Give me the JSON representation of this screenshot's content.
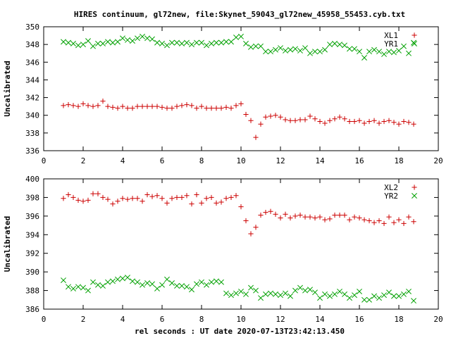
{
  "chart_data": [
    {
      "type": "scatter",
      "title": "HIRES continuum, gl72new, file:Skynet_59043_gl72new_45958_55453.cyb.txt",
      "xlabel": "",
      "ylabel": "Uncalibrated",
      "xlim": [
        0,
        20
      ],
      "ylim": [
        336,
        350
      ],
      "xticks": [
        0,
        2,
        4,
        6,
        8,
        10,
        12,
        14,
        16,
        18,
        20
      ],
      "yticks": [
        336,
        338,
        340,
        342,
        344,
        346,
        348,
        350
      ],
      "grid": false,
      "legend_position": "top-right",
      "series": [
        {
          "name": "XL1",
          "marker": "plus",
          "color": "#cc0000",
          "x": [
            1.0,
            1.25,
            1.5,
            1.75,
            2.0,
            2.25,
            2.5,
            2.75,
            3.0,
            3.25,
            3.5,
            3.75,
            4.0,
            4.25,
            4.5,
            4.75,
            5.0,
            5.25,
            5.5,
            5.75,
            6.0,
            6.25,
            6.5,
            6.75,
            7.0,
            7.25,
            7.5,
            7.75,
            8.0,
            8.25,
            8.5,
            8.75,
            9.0,
            9.25,
            9.5,
            9.75,
            10.0,
            10.25,
            10.5,
            10.75,
            11.0,
            11.25,
            11.5,
            11.75,
            12.0,
            12.25,
            12.5,
            12.75,
            13.0,
            13.25,
            13.5,
            13.75,
            14.0,
            14.25,
            14.5,
            14.75,
            15.0,
            15.25,
            15.5,
            15.75,
            16.0,
            16.25,
            16.5,
            16.75,
            17.0,
            17.25,
            17.5,
            17.75,
            18.0,
            18.25,
            18.5,
            18.75
          ],
          "y": [
            341.1,
            341.2,
            341.1,
            341.0,
            341.3,
            341.1,
            341.0,
            341.1,
            341.6,
            341.0,
            340.9,
            340.8,
            341.0,
            340.8,
            340.8,
            341.0,
            341.0,
            341.0,
            341.0,
            341.0,
            340.9,
            340.8,
            340.8,
            341.0,
            341.1,
            341.2,
            341.1,
            340.8,
            341.0,
            340.8,
            340.8,
            340.8,
            340.8,
            340.9,
            340.8,
            341.1,
            341.3,
            340.1,
            339.4,
            337.5,
            339.0,
            339.8,
            339.9,
            340.0,
            339.8,
            339.5,
            339.4,
            339.4,
            339.5,
            339.5,
            339.9,
            339.6,
            339.3,
            339.1,
            339.4,
            339.6,
            339.8,
            339.6,
            339.3,
            339.3,
            339.4,
            339.1,
            339.3,
            339.4,
            339.1,
            339.3,
            339.4,
            339.2,
            339.0,
            339.3,
            339.2,
            339.0
          ]
        },
        {
          "name": "YR1",
          "marker": "x",
          "color": "#00a000",
          "x": [
            1.0,
            1.25,
            1.5,
            1.75,
            2.0,
            2.25,
            2.5,
            2.75,
            3.0,
            3.25,
            3.5,
            3.75,
            4.0,
            4.25,
            4.5,
            4.75,
            5.0,
            5.25,
            5.5,
            5.75,
            6.0,
            6.25,
            6.5,
            6.75,
            7.0,
            7.25,
            7.5,
            7.75,
            8.0,
            8.25,
            8.5,
            8.75,
            9.0,
            9.25,
            9.5,
            9.75,
            10.0,
            10.25,
            10.5,
            10.75,
            11.0,
            11.25,
            11.5,
            11.75,
            12.0,
            12.25,
            12.5,
            12.75,
            13.0,
            13.25,
            13.5,
            13.75,
            14.0,
            14.25,
            14.5,
            14.75,
            15.0,
            15.25,
            15.5,
            15.75,
            16.0,
            16.25,
            16.5,
            16.75,
            17.0,
            17.25,
            17.5,
            17.75,
            18.0,
            18.25,
            18.5,
            18.75
          ],
          "y": [
            348.3,
            348.2,
            348.1,
            347.9,
            348.0,
            348.4,
            347.8,
            348.1,
            348.1,
            348.3,
            348.2,
            348.3,
            348.7,
            348.5,
            348.4,
            348.7,
            348.9,
            348.7,
            348.6,
            348.2,
            348.1,
            347.9,
            348.2,
            348.2,
            348.1,
            348.2,
            348.0,
            348.2,
            348.2,
            347.9,
            348.1,
            348.2,
            348.2,
            348.3,
            348.3,
            348.8,
            348.9,
            348.1,
            347.7,
            347.8,
            347.8,
            347.2,
            347.2,
            347.4,
            347.6,
            347.3,
            347.4,
            347.5,
            347.3,
            347.6,
            347.0,
            347.2,
            347.2,
            347.4,
            348.0,
            348.1,
            348.0,
            347.9,
            347.5,
            347.5,
            347.2,
            346.5,
            347.2,
            347.4,
            347.2,
            346.9,
            347.2,
            347.1,
            347.3,
            347.8,
            347.0,
            348.2
          ]
        }
      ]
    },
    {
      "type": "scatter",
      "title": "",
      "xlabel": "rel seconds : UT date 2020-07-13T23:42:13.450",
      "ylabel": "Uncalibrated",
      "xlim": [
        0,
        20
      ],
      "ylim": [
        386,
        400
      ],
      "xticks": [
        0,
        2,
        4,
        6,
        8,
        10,
        12,
        14,
        16,
        18,
        20
      ],
      "yticks": [
        386,
        388,
        390,
        392,
        394,
        396,
        398,
        400
      ],
      "grid": false,
      "legend_position": "top-right",
      "series": [
        {
          "name": "XL2",
          "marker": "plus",
          "color": "#cc0000",
          "x": [
            1.0,
            1.25,
            1.5,
            1.75,
            2.0,
            2.25,
            2.5,
            2.75,
            3.0,
            3.25,
            3.5,
            3.75,
            4.0,
            4.25,
            4.5,
            4.75,
            5.0,
            5.25,
            5.5,
            5.75,
            6.0,
            6.25,
            6.5,
            6.75,
            7.0,
            7.25,
            7.5,
            7.75,
            8.0,
            8.25,
            8.5,
            8.75,
            9.0,
            9.25,
            9.5,
            9.75,
            10.0,
            10.25,
            10.5,
            10.75,
            11.0,
            11.25,
            11.5,
            11.75,
            12.0,
            12.25,
            12.5,
            12.75,
            13.0,
            13.25,
            13.5,
            13.75,
            14.0,
            14.25,
            14.5,
            14.75,
            15.0,
            15.25,
            15.5,
            15.75,
            16.0,
            16.25,
            16.5,
            16.75,
            17.0,
            17.25,
            17.5,
            17.75,
            18.0,
            18.25,
            18.5,
            18.75
          ],
          "y": [
            397.9,
            398.3,
            398.0,
            397.7,
            397.6,
            397.7,
            398.4,
            398.4,
            398.0,
            397.8,
            397.3,
            397.6,
            397.9,
            397.8,
            397.9,
            397.9,
            397.6,
            398.3,
            398.1,
            398.2,
            397.9,
            397.4,
            397.9,
            398.0,
            398.0,
            398.2,
            397.3,
            398.3,
            397.4,
            397.9,
            398.0,
            397.4,
            397.5,
            397.9,
            398.0,
            398.2,
            397.0,
            395.5,
            394.1,
            394.8,
            396.1,
            396.4,
            396.5,
            396.2,
            395.8,
            396.2,
            395.8,
            396.0,
            396.1,
            395.9,
            395.9,
            395.8,
            395.9,
            395.6,
            395.7,
            396.1,
            396.1,
            396.1,
            395.6,
            395.9,
            395.8,
            395.6,
            395.5,
            395.3,
            395.5,
            395.2,
            395.9,
            395.3,
            395.6,
            395.2,
            395.9,
            395.4
          ]
        },
        {
          "name": "YR2",
          "marker": "x",
          "color": "#00a000",
          "x": [
            1.0,
            1.25,
            1.5,
            1.75,
            2.0,
            2.25,
            2.5,
            2.75,
            3.0,
            3.25,
            3.5,
            3.75,
            4.0,
            4.25,
            4.5,
            4.75,
            5.0,
            5.25,
            5.5,
            5.75,
            6.0,
            6.25,
            6.5,
            6.75,
            7.0,
            7.25,
            7.5,
            7.75,
            8.0,
            8.25,
            8.5,
            8.75,
            9.0,
            9.25,
            9.5,
            9.75,
            10.0,
            10.25,
            10.5,
            10.75,
            11.0,
            11.25,
            11.5,
            11.75,
            12.0,
            12.25,
            12.5,
            12.75,
            13.0,
            13.25,
            13.5,
            13.75,
            14.0,
            14.25,
            14.5,
            14.75,
            15.0,
            15.25,
            15.5,
            15.75,
            16.0,
            16.25,
            16.5,
            16.75,
            17.0,
            17.25,
            17.5,
            17.75,
            18.0,
            18.25,
            18.5,
            18.75
          ],
          "y": [
            389.1,
            388.4,
            388.2,
            388.4,
            388.3,
            388.0,
            388.9,
            388.6,
            388.5,
            388.9,
            389.0,
            389.2,
            389.3,
            389.4,
            389.0,
            388.9,
            388.6,
            388.8,
            388.7,
            388.2,
            388.6,
            389.2,
            388.8,
            388.5,
            388.5,
            388.4,
            388.1,
            388.7,
            388.9,
            388.6,
            388.9,
            389.0,
            388.9,
            387.7,
            387.5,
            387.7,
            387.9,
            387.6,
            388.3,
            388.0,
            387.2,
            387.6,
            387.7,
            387.6,
            387.5,
            387.7,
            387.4,
            388.0,
            388.3,
            388.0,
            388.1,
            387.8,
            387.2,
            387.6,
            387.4,
            387.6,
            387.9,
            387.6,
            387.2,
            387.5,
            387.9,
            387.0,
            387.0,
            387.4,
            387.2,
            387.5,
            387.8,
            387.4,
            387.4,
            387.6,
            387.9,
            386.9
          ]
        }
      ]
    }
  ]
}
